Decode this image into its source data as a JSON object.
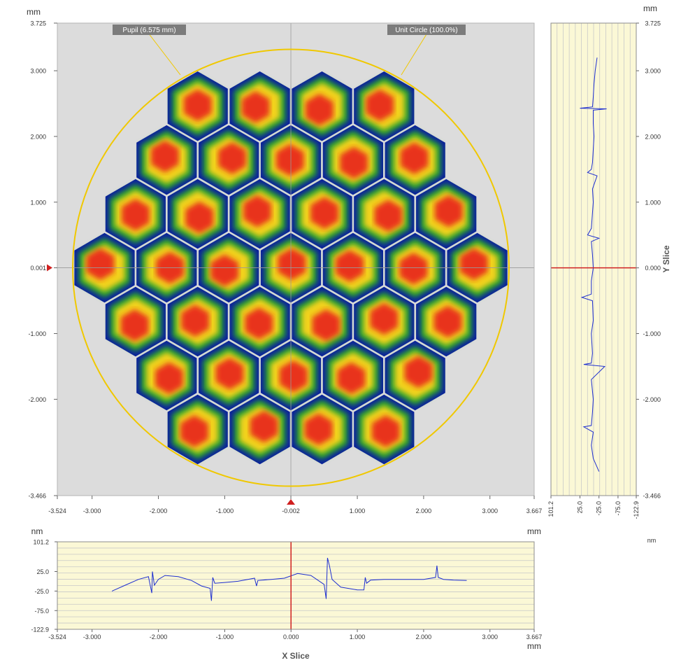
{
  "chart_data": [
    {
      "type": "heatmap",
      "name": "surface-map",
      "x_unit": "mm",
      "y_unit": "mm",
      "xlim": [
        -3.524,
        3.667
      ],
      "ylim": [
        -3.466,
        3.725
      ],
      "x_ticks": [
        "-3.524",
        "-3.000",
        "-2.000",
        "-1.000",
        "-0.002",
        "1.000",
        "2.000",
        "3.000",
        "3.667"
      ],
      "y_ticks": [
        "3.725",
        "3.000",
        "2.000",
        "1.000",
        "0.001",
        "-1.000",
        "-2.000",
        "-3.466"
      ],
      "crosshair": {
        "x": -0.002,
        "y": 0.001
      },
      "pupil_label": "Pupil (6.575 mm)",
      "unit_circle_label": "Unit Circle (100.0%)",
      "unit_circle_radius_mm": 3.29,
      "segment_layout": "hexagonal mirror segments (37), colour = surface height, red high, blue low",
      "colors": {
        "high": "#e8201a",
        "mid": "#f2d21a",
        "low": "#2aa52a",
        "edge": "#0b1f9e",
        "circle": "#f0c800",
        "background": "#dcdcdc"
      }
    },
    {
      "type": "line",
      "name": "x-slice",
      "title": "X Slice",
      "x_unit": "mm",
      "y_unit": "nm",
      "xlim": [
        -3.524,
        3.667
      ],
      "ylim": [
        -122.9,
        101.2
      ],
      "x_ticks": [
        "-3.524",
        "-3.000",
        "-2.000",
        "-1.000",
        "0.000",
        "1.000",
        "2.000",
        "3.000",
        "3.667"
      ],
      "y_ticks": [
        "101.2",
        "25.0",
        "-25.0",
        "-75.0",
        "-122.9"
      ],
      "marker_x": 0.0,
      "x": [
        -2.7,
        -2.5,
        -2.3,
        -2.15,
        -2.1,
        -2.09,
        -2.06,
        -2.0,
        -1.9,
        -1.7,
        -1.5,
        -1.35,
        -1.22,
        -1.2,
        -1.18,
        -1.15,
        -1.0,
        -0.8,
        -0.55,
        -0.52,
        -0.5,
        -0.3,
        -0.1,
        0.1,
        0.3,
        0.5,
        0.53,
        0.55,
        0.58,
        0.62,
        0.75,
        1.0,
        1.1,
        1.12,
        1.14,
        1.2,
        1.4,
        1.6,
        1.8,
        2.0,
        2.18,
        2.2,
        2.22,
        2.3,
        2.45,
        2.65
      ],
      "y": [
        -25,
        -10,
        5,
        12,
        -30,
        25,
        -10,
        5,
        15,
        12,
        2,
        -12,
        -18,
        -50,
        10,
        -5,
        -3,
        0,
        8,
        -12,
        2,
        5,
        8,
        20,
        15,
        -8,
        -45,
        60,
        40,
        5,
        -15,
        -22,
        -22,
        10,
        -5,
        3,
        5,
        5,
        5,
        5,
        10,
        40,
        10,
        5,
        3,
        2
      ]
    },
    {
      "type": "line",
      "name": "y-slice",
      "title": "Y Slice",
      "x_unit": "nm",
      "y_unit": "mm",
      "xlim": [
        101.2,
        -122.9
      ],
      "ylim": [
        -3.466,
        3.725
      ],
      "x_ticks": [
        "101.2",
        "25.0",
        "-25.0",
        "-75.0",
        "-122.9"
      ],
      "y_ticks": [
        "3.725",
        "3.000",
        "2.000",
        "1.000",
        "0.000",
        "-1.000",
        "-2.000",
        "-3.466"
      ],
      "marker_y": 0.0,
      "y": [
        3.2,
        3.0,
        2.8,
        2.6,
        2.45,
        2.43,
        2.42,
        2.4,
        2.2,
        2.0,
        1.6,
        1.5,
        1.45,
        1.4,
        1.2,
        1.0,
        0.6,
        0.5,
        0.45,
        0.4,
        0.2,
        0.0,
        -0.2,
        -0.4,
        -0.45,
        -0.5,
        -0.8,
        -1.0,
        -1.3,
        -1.45,
        -1.47,
        -1.5,
        -1.7,
        -2.0,
        -2.2,
        -2.4,
        -2.42,
        -2.5,
        -2.7,
        -2.9,
        -3.1
      ],
      "x": [
        -20,
        -15,
        -12,
        -10,
        -8,
        25,
        -45,
        -10,
        -10,
        -12,
        -8,
        -5,
        5,
        -20,
        -8,
        -10,
        -5,
        5,
        -25,
        -5,
        -8,
        -10,
        -5,
        -5,
        20,
        -8,
        -10,
        -5,
        -8,
        -5,
        15,
        -40,
        -5,
        -10,
        -8,
        -5,
        15,
        -10,
        -5,
        -10,
        -25
      ]
    }
  ]
}
